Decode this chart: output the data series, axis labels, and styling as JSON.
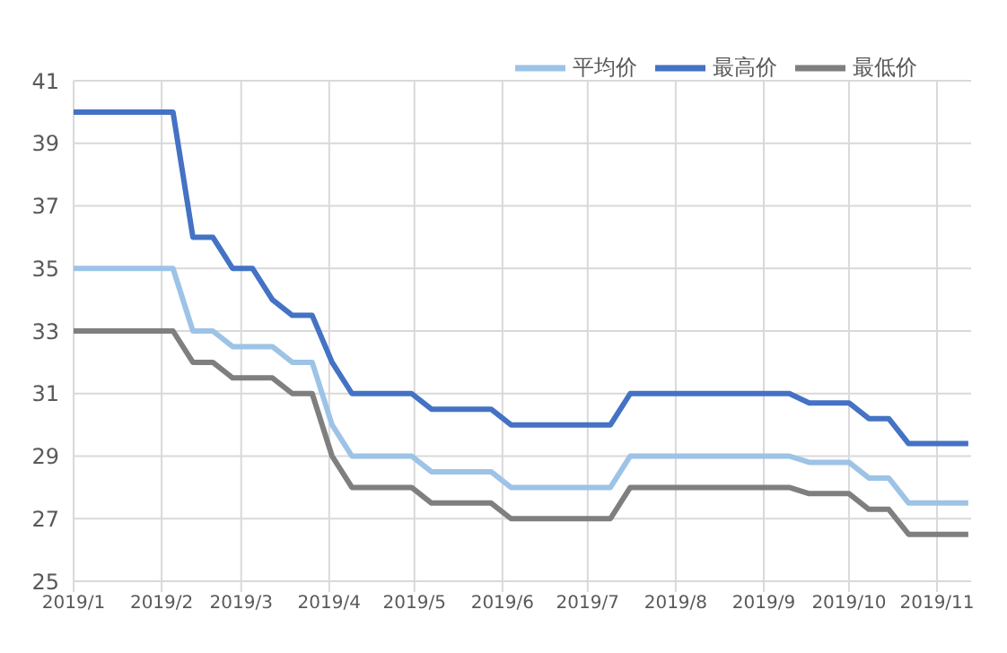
{
  "chart_data": {
    "type": "line",
    "x": [
      "2019-01-01",
      "2019-01-08",
      "2019-01-15",
      "2019-01-22",
      "2019-01-29",
      "2019-02-05",
      "2019-02-12",
      "2019-02-19",
      "2019-02-26",
      "2019-03-05",
      "2019-03-12",
      "2019-03-19",
      "2019-03-26",
      "2019-04-02",
      "2019-04-09",
      "2019-04-16",
      "2019-04-23",
      "2019-04-30",
      "2019-05-07",
      "2019-05-14",
      "2019-05-21",
      "2019-05-28",
      "2019-06-04",
      "2019-06-11",
      "2019-06-18",
      "2019-06-25",
      "2019-07-02",
      "2019-07-09",
      "2019-07-16",
      "2019-07-23",
      "2019-07-30",
      "2019-08-06",
      "2019-08-13",
      "2019-08-20",
      "2019-08-27",
      "2019-09-03",
      "2019-09-10",
      "2019-09-17",
      "2019-09-24",
      "2019-10-01",
      "2019-10-08",
      "2019-10-15",
      "2019-10-22",
      "2019-10-29",
      "2019-11-05",
      "2019-11-12"
    ],
    "series": [
      {
        "name": "平均价",
        "color": "#9dc3e6",
        "values": [
          35,
          35,
          35,
          35,
          35,
          35,
          33,
          33,
          32.5,
          32.5,
          32.5,
          32,
          32,
          30,
          29,
          29,
          29,
          29,
          28.5,
          28.5,
          28.5,
          28.5,
          28,
          28,
          28,
          28,
          28,
          28,
          29,
          29,
          29,
          29,
          29,
          29,
          29,
          29,
          29,
          28.8,
          28.8,
          28.8,
          28.3,
          28.3,
          27.5,
          27.5,
          27.5,
          27.5
        ]
      },
      {
        "name": "最高价",
        "color": "#4472c4",
        "values": [
          40,
          40,
          40,
          40,
          40,
          40,
          36,
          36,
          35,
          35,
          34,
          33.5,
          33.5,
          32,
          31,
          31,
          31,
          31,
          30.5,
          30.5,
          30.5,
          30.5,
          30,
          30,
          30,
          30,
          30,
          30,
          31,
          31,
          31,
          31,
          31,
          31,
          31,
          31,
          31,
          30.7,
          30.7,
          30.7,
          30.2,
          30.2,
          29.4,
          29.4,
          29.4,
          29.4
        ]
      },
      {
        "name": "最低价",
        "color": "#7f7f7f",
        "values": [
          33,
          33,
          33,
          33,
          33,
          33,
          32,
          32,
          31.5,
          31.5,
          31.5,
          31,
          31,
          29,
          28,
          28,
          28,
          28,
          27.5,
          27.5,
          27.5,
          27.5,
          27,
          27,
          27,
          27,
          27,
          27,
          28,
          28,
          28,
          28,
          28,
          28,
          28,
          28,
          28,
          27.8,
          27.8,
          27.8,
          27.3,
          27.3,
          26.5,
          26.5,
          26.5,
          26.5
        ]
      }
    ],
    "xlim": [
      "2019-01-01",
      "2019-11-13"
    ],
    "xticks": [
      {
        "value": "2019-01-01",
        "label": "2019/1"
      },
      {
        "value": "2019-02-01",
        "label": "2019/2"
      },
      {
        "value": "2019-03-01",
        "label": "2019/3"
      },
      {
        "value": "2019-04-01",
        "label": "2019/4"
      },
      {
        "value": "2019-05-01",
        "label": "2019/5"
      },
      {
        "value": "2019-06-01",
        "label": "2019/6"
      },
      {
        "value": "2019-07-01",
        "label": "2019/7"
      },
      {
        "value": "2019-08-01",
        "label": "2019/8"
      },
      {
        "value": "2019-09-01",
        "label": "2019/9"
      },
      {
        "value": "2019-10-01",
        "label": "2019/10"
      },
      {
        "value": "2019-11-01",
        "label": "2019/11"
      }
    ],
    "ylim": [
      25,
      41
    ],
    "yticks": [
      25,
      27,
      29,
      31,
      33,
      35,
      37,
      39,
      41
    ],
    "grid": true,
    "legend": "top right",
    "marker": "none",
    "line_style": "solid"
  }
}
